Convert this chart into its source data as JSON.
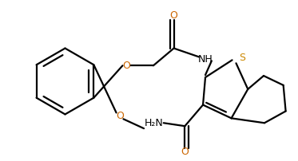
{
  "bg_color": "#ffffff",
  "line_color": "#000000",
  "o_color": "#cc6600",
  "s_color": "#cc8800",
  "n_color": "#000000",
  "line_width": 1.6,
  "figsize": [
    3.73,
    2.02
  ],
  "dpi": 100,
  "xlim": [
    0,
    3.73
  ],
  "ylim": [
    0,
    2.02
  ]
}
